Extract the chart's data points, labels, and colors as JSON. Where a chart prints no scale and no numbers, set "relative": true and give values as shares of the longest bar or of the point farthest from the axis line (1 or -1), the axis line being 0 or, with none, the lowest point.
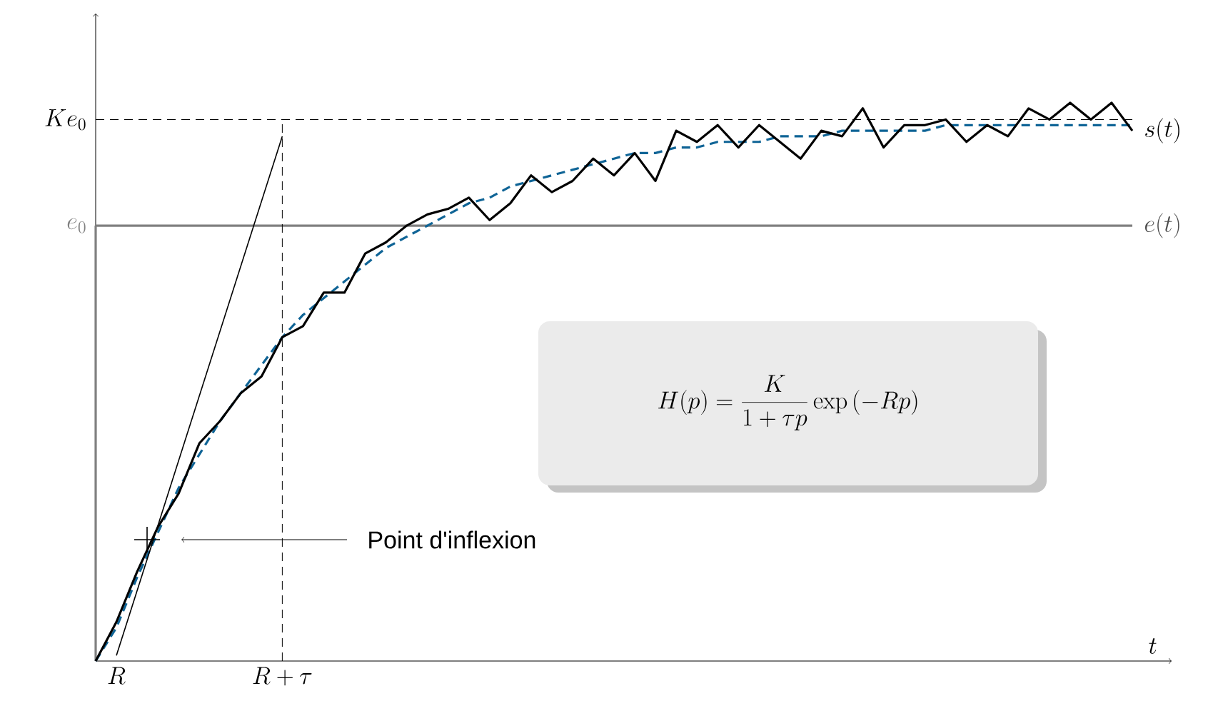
{
  "chart_data": {
    "type": "line",
    "relative": true,
    "xlabel": "t",
    "categories": [
      null,
      null,
      null,
      null,
      null,
      null,
      null,
      null,
      null,
      null,
      null,
      null,
      null,
      null,
      null,
      null,
      null,
      null,
      null,
      null,
      null,
      null,
      null,
      null,
      null,
      null,
      null,
      null,
      null,
      null,
      null,
      null,
      null,
      null,
      null,
      null,
      null,
      null,
      null,
      null,
      null,
      null,
      null,
      null,
      null,
      null,
      null,
      null,
      null,
      null,
      null
    ],
    "series": [
      {
        "name": "s(t)",
        "color": "#000000",
        "values": [
          0,
          0.07,
          0.16,
          0.24,
          0.3,
          0.39,
          0.43,
          0.48,
          0.51,
          0.58,
          0.6,
          0.66,
          0.66,
          0.73,
          0.75,
          0.78,
          0.8,
          0.81,
          0.83,
          0.79,
          0.82,
          0.87,
          0.84,
          0.86,
          0.9,
          0.87,
          0.91,
          0.86,
          0.95,
          0.93,
          0.96,
          0.92,
          0.96,
          0.93,
          0.9,
          0.95,
          0.94,
          0.99,
          0.92,
          0.96,
          0.96,
          0.97,
          0.93,
          0.96,
          0.94,
          0.99,
          0.97,
          1.0,
          0.97,
          1.0,
          0.95
        ]
      },
      {
        "color": "#0f6496",
        "line_style": "dashed",
        "values": [
          0,
          0.06,
          0.15,
          0.23,
          0.31,
          0.37,
          0.43,
          0.48,
          0.53,
          0.58,
          0.62,
          0.65,
          0.68,
          0.71,
          0.74,
          0.76,
          0.78,
          0.8,
          0.82,
          0.83,
          0.85,
          0.86,
          0.87,
          0.88,
          0.89,
          0.9,
          0.91,
          0.91,
          0.92,
          0.92,
          0.93,
          0.93,
          0.93,
          0.94,
          0.94,
          0.94,
          0.95,
          0.95,
          0.95,
          0.95,
          0.95,
          0.96,
          0.96,
          0.96,
          0.96,
          0.96,
          0.96,
          0.96,
          0.96,
          0.96,
          0.96
        ]
      },
      {
        "name": "e(t)",
        "color": "#808080",
        "type": "step",
        "values": [
          0.78,
          0.78,
          0.78,
          0.78,
          0.78,
          0.78,
          0.78,
          0.78,
          0.78,
          0.78,
          0.78,
          0.78,
          0.78,
          0.78,
          0.78,
          0.78,
          0.78,
          0.78,
          0.78,
          0.78,
          0.78,
          0.78,
          0.78,
          0.78,
          0.78,
          0.78,
          0.78,
          0.78,
          0.78,
          0.78,
          0.78,
          0.78,
          0.78,
          0.78,
          0.78,
          0.78,
          0.78,
          0.78,
          0.78,
          0.78,
          0.78,
          0.78,
          0.78,
          0.78,
          0.78,
          0.78,
          0.78,
          0.78,
          0.78,
          0.78,
          0.78
        ]
      },
      {
        "color": "#000000",
        "values": [
          null,
          0.01,
          null,
          null,
          null,
          null,
          null,
          null,
          null,
          0.94,
          null,
          null,
          null,
          null,
          null,
          null,
          null,
          null,
          null,
          null,
          null,
          null,
          null,
          null,
          null,
          null,
          null,
          null,
          null,
          null,
          null,
          null,
          null,
          null,
          null,
          null,
          null,
          null,
          null,
          null,
          null,
          null,
          null,
          null,
          null,
          null,
          null,
          null,
          null,
          null,
          null
        ]
      }
    ],
    "ref_lines": [
      {
        "axis": "y",
        "value": 0.97,
        "label": "Ke_0",
        "line_style": "dashed",
        "color": "#000000"
      }
    ],
    "annotations": [
      "H(p)=\\frac{K}{1+\\tau p}\\exp\\left(-Rp\\right)",
      "Point d'inflexion",
      "e_0",
      "R",
      "R+\\tau"
    ]
  }
}
